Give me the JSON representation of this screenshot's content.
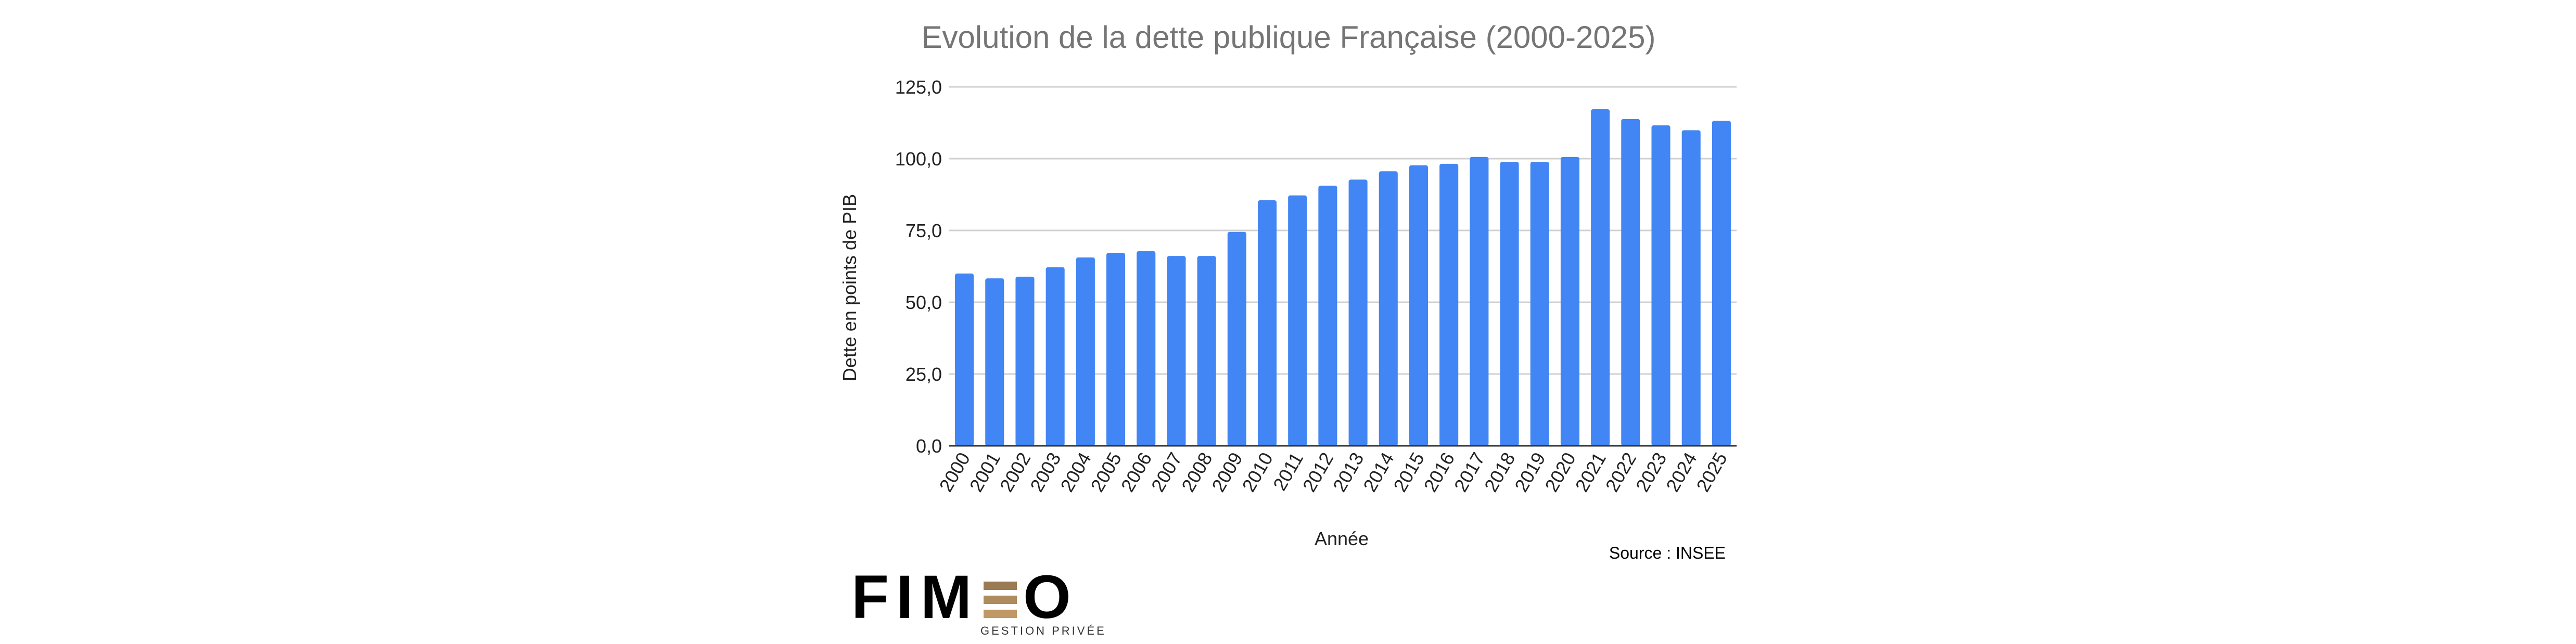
{
  "chart_data": {
    "type": "bar",
    "title": "Evolution de la dette publique Française (2000-2025)",
    "xlabel": "Année",
    "ylabel": "Dette en points de PIB",
    "ylim": [
      0,
      125
    ],
    "yticks": [
      0,
      25,
      50,
      75,
      100,
      125
    ],
    "ytick_labels": [
      "0,0",
      "25,0",
      "50,0",
      "75,0",
      "100,0",
      "125,0"
    ],
    "grid": true,
    "categories": [
      "2000",
      "2001",
      "2002",
      "2003",
      "2004",
      "2005",
      "2006",
      "2007",
      "2008",
      "2009",
      "2010",
      "2011",
      "2012",
      "2013",
      "2014",
      "2015",
      "2016",
      "2017",
      "2018",
      "2019",
      "2020",
      "2021",
      "2022",
      "2023",
      "2024",
      "2025"
    ],
    "values": [
      60.0,
      58.3,
      58.9,
      62.2,
      65.6,
      67.2,
      67.8,
      66.1,
      66.1,
      74.5,
      85.5,
      87.2,
      90.6,
      92.7,
      95.6,
      97.7,
      98.2,
      100.6,
      98.9,
      98.9,
      100.6,
      117.2,
      113.8,
      111.6,
      109.9,
      113.2
    ],
    "bar_color": "#4285f4",
    "source": "Source : INSEE"
  },
  "logo": {
    "name": "FIMEO",
    "tagline": "GESTION PRIVÉE",
    "accent_color": "#a8875a"
  }
}
